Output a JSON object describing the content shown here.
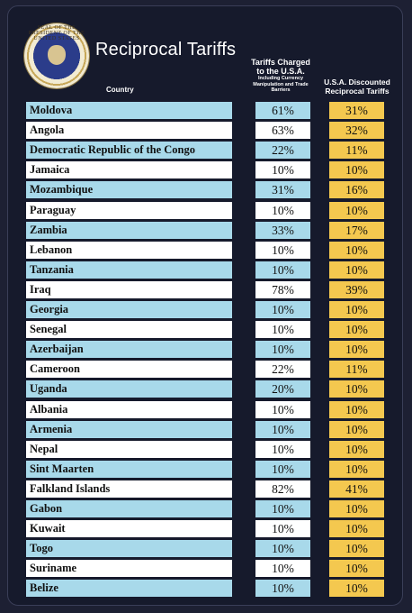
{
  "header": {
    "title": "Reciprocal Tariffs",
    "seal_text": "SEAL OF THE PRESIDENT OF THE UNITED STATES",
    "col_country": "Country",
    "col_charged_main": "Tariffs Charged to the U.S.A.",
    "col_charged_sub": "Including Currency Manipulation and Trade Barriers",
    "col_discounted": "U.S.A. Discounted Reciprocal Tariffs"
  },
  "colors": {
    "blue_row": "#a8d9ea",
    "white_row": "#ffffff",
    "discount_cell": "#f4c84f",
    "background": "#161a2c"
  },
  "rows": [
    {
      "country": "Moldova",
      "charged": "61%",
      "discounted": "31%"
    },
    {
      "country": "Angola",
      "charged": "63%",
      "discounted": "32%"
    },
    {
      "country": "Democratic Republic of the Congo",
      "charged": "22%",
      "discounted": "11%"
    },
    {
      "country": "Jamaica",
      "charged": "10%",
      "discounted": "10%"
    },
    {
      "country": "Mozambique",
      "charged": "31%",
      "discounted": "16%"
    },
    {
      "country": "Paraguay",
      "charged": "10%",
      "discounted": "10%"
    },
    {
      "country": "Zambia",
      "charged": "33%",
      "discounted": "17%"
    },
    {
      "country": "Lebanon",
      "charged": "10%",
      "discounted": "10%"
    },
    {
      "country": "Tanzania",
      "charged": "10%",
      "discounted": "10%"
    },
    {
      "country": "Iraq",
      "charged": "78%",
      "discounted": "39%"
    },
    {
      "country": "Georgia",
      "charged": "10%",
      "discounted": "10%"
    },
    {
      "country": "Senegal",
      "charged": "10%",
      "discounted": "10%"
    },
    {
      "country": "Azerbaijan",
      "charged": "10%",
      "discounted": "10%"
    },
    {
      "country": "Cameroon",
      "charged": "22%",
      "discounted": "11%"
    },
    {
      "country": "Uganda",
      "charged": "20%",
      "discounted": "10%"
    },
    {
      "country": "Albania",
      "charged": "10%",
      "discounted": "10%"
    },
    {
      "country": "Armenia",
      "charged": "10%",
      "discounted": "10%"
    },
    {
      "country": "Nepal",
      "charged": "10%",
      "discounted": "10%"
    },
    {
      "country": "Sint Maarten",
      "charged": "10%",
      "discounted": "10%"
    },
    {
      "country": "Falkland Islands",
      "charged": "82%",
      "discounted": "41%"
    },
    {
      "country": "Gabon",
      "charged": "10%",
      "discounted": "10%"
    },
    {
      "country": "Kuwait",
      "charged": "10%",
      "discounted": "10%"
    },
    {
      "country": "Togo",
      "charged": "10%",
      "discounted": "10%"
    },
    {
      "country": "Suriname",
      "charged": "10%",
      "discounted": "10%"
    },
    {
      "country": "Belize",
      "charged": "10%",
      "discounted": "10%"
    }
  ]
}
